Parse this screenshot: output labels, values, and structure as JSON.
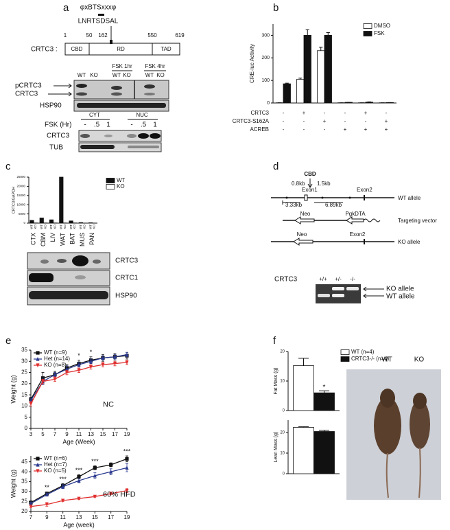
{
  "panel_labels": [
    "a",
    "b",
    "c",
    "d",
    "e",
    "f"
  ],
  "panel_a": {
    "motif": "φxBTSxxxφ",
    "sequence": "LNRTSDSAL",
    "gene": "CRTC3 :",
    "positions": [
      1,
      50,
      162,
      550,
      619
    ],
    "domains": [
      "CBD",
      "RD",
      "TAD"
    ],
    "blot1": {
      "groups": [
        "FSK 1hr",
        "FSK 4hr"
      ],
      "lanes": [
        "WT",
        "KO",
        "WT",
        "KO",
        "WT",
        "KO"
      ],
      "rows": [
        "pCRTC3",
        "CRTC3",
        "HSP90"
      ]
    },
    "blot2": {
      "groups": [
        "CYT",
        "NUC"
      ],
      "condition": "FSK (Hr)",
      "lanes": [
        "-",
        ".5",
        "1",
        "-",
        ".5",
        "1"
      ],
      "rows": [
        "CRTC3",
        "TUB"
      ]
    }
  },
  "panel_d": {
    "cbd": "CBD",
    "kb_left": "0.8kb",
    "exon1": "Exon1",
    "kb_right": "1.5kb",
    "exon2": "Exon2",
    "kb_a": "3.33kb",
    "kb_b": "6.89kb",
    "wt_allele": "WT allele",
    "neo": "Neo",
    "pgkdta": "PgkDTA",
    "targeting_vector": "Targeting vector",
    "ko_neo": "Neo",
    "ko_exon2": "Exon2",
    "ko_allele": "KO allele",
    "gel": {
      "gene": "CRTC3",
      "lanes": [
        "+/+",
        "+/-",
        "-/-"
      ],
      "bands": [
        "KO allele",
        "WT allele"
      ]
    }
  },
  "panel_c_blot": {
    "rows": [
      "CRTC3",
      "CRTC1",
      "HSP90"
    ]
  },
  "panel_f_photo": {
    "labels": [
      "WT",
      "KO"
    ]
  },
  "chart_data": [
    {
      "type": "bar",
      "y_label": "CRE-luc Activity",
      "ylim": [
        0,
        350
      ],
      "yticks": [
        0,
        100,
        200,
        300
      ],
      "series": [
        {
          "name": "DMSO",
          "color": "#ffffff",
          "values": [
            1,
            105,
            232,
            1,
            1,
            1
          ],
          "errors": [
            0,
            5,
            15,
            0,
            0,
            0
          ]
        },
        {
          "name": "FSK",
          "color": "#111111",
          "values": [
            85,
            300,
            300,
            3,
            4,
            2
          ],
          "errors": [
            3,
            25,
            12,
            0,
            1,
            0
          ]
        }
      ],
      "conditions": [
        {
          "name": "CRTC3",
          "signs": [
            "-",
            "+",
            "-",
            "-",
            "+",
            "-"
          ]
        },
        {
          "name": "CRTC3-S162A",
          "signs": [
            "-",
            "-",
            "+",
            "-",
            "-",
            "+"
          ]
        },
        {
          "name": "ACREB",
          "signs": [
            "-",
            "-",
            "-",
            "+",
            "+",
            "+"
          ]
        }
      ]
    },
    {
      "type": "bar",
      "y_label": "CRTC3/GAPDH",
      "ylim": [
        0,
        25000
      ],
      "yticks": [
        0,
        5000,
        10000,
        15000,
        20000,
        25000
      ],
      "categories": [
        "CTX",
        "CBM",
        "LIV",
        "WAT",
        "BAT",
        "MUS",
        "PAN"
      ],
      "series": [
        {
          "name": "WT",
          "color": "#111111",
          "values": [
            1500,
            2800,
            1800,
            25000,
            1200,
            300,
            200
          ]
        },
        {
          "name": "KO",
          "color": "#ffffff",
          "values": [
            100,
            100,
            100,
            100,
            100,
            50,
            50
          ]
        }
      ]
    },
    {
      "type": "line",
      "x_label": "Age (Week)",
      "y_label": "Weight (g)",
      "condition": "NC",
      "x": [
        3,
        5,
        7,
        9,
        11,
        13,
        15,
        17,
        19
      ],
      "xlim": [
        3,
        19
      ],
      "xticks": [
        3,
        5,
        7,
        9,
        11,
        13,
        15,
        17,
        19
      ],
      "ylim": [
        0,
        35
      ],
      "yticks": [
        0,
        5,
        10,
        15,
        20,
        25,
        30,
        35
      ],
      "series": [
        {
          "name": "WT (n=9)",
          "color": "#111111",
          "marker": "square",
          "values": [
            13,
            22.5,
            24,
            27,
            29,
            30.5,
            31.5,
            32,
            32.5
          ],
          "errors": [
            1,
            2.5,
            1.5,
            1.5,
            1.5,
            1.5,
            1.5,
            1.5,
            1.5
          ]
        },
        {
          "name": "Het (n=14)",
          "color": "#2b3a8f",
          "marker": "tri-up",
          "values": [
            12.5,
            21,
            24,
            26.5,
            28.5,
            30,
            31.5,
            32,
            33
          ],
          "errors": [
            1,
            1.5,
            1,
            1.5,
            1,
            1,
            1,
            1,
            1
          ]
        },
        {
          "name": "KO (n=8)",
          "color": "#e0302f",
          "marker": "tri-down",
          "values": [
            11,
            21,
            22,
            25,
            26,
            27.5,
            28.5,
            29,
            29.5
          ],
          "errors": [
            1,
            1,
            1,
            1,
            1,
            1,
            1,
            1,
            1
          ]
        }
      ],
      "annotations": [
        {
          "x": 11,
          "text": "*"
        },
        {
          "x": 13,
          "text": "*"
        }
      ]
    },
    {
      "type": "line",
      "x_label": "Age (week)",
      "y_label": "Weight (g)",
      "condition": "60% HFD",
      "x": [
        7,
        9,
        11,
        13,
        15,
        17,
        19
      ],
      "xlim": [
        7,
        19
      ],
      "xticks": [
        7,
        9,
        11,
        13,
        15,
        17,
        19
      ],
      "ylim": [
        20,
        48
      ],
      "yticks": [
        20,
        25,
        30,
        35,
        40,
        45
      ],
      "series": [
        {
          "name": "WT (n=6)",
          "color": "#111111",
          "marker": "square",
          "values": [
            24.5,
            29,
            33,
            37.5,
            42,
            43.5,
            46.5
          ],
          "errors": [
            0.8,
            0.8,
            1,
            1,
            1,
            1,
            1.5
          ]
        },
        {
          "name": "Het (n=7)",
          "color": "#2b3a8f",
          "marker": "tri-up",
          "values": [
            24,
            28.5,
            32.5,
            35.5,
            38,
            40,
            42
          ],
          "errors": [
            0.8,
            0.8,
            1,
            1,
            1.5,
            1.5,
            2
          ]
        },
        {
          "name": "KO (n=5)",
          "color": "#e0302f",
          "marker": "tri-down",
          "values": [
            22.5,
            23.5,
            25.5,
            26.5,
            27.5,
            29,
            30.5
          ],
          "errors": [
            0.5,
            1,
            0.5,
            0.5,
            0.5,
            0.5,
            1
          ]
        }
      ],
      "annotations": [
        {
          "x": 9,
          "text": "**"
        },
        {
          "x": 11,
          "text": "***"
        },
        {
          "x": 13,
          "text": "***"
        },
        {
          "x": 15,
          "text": "***"
        },
        {
          "x": 19,
          "text": "***"
        }
      ]
    },
    {
      "type": "bar",
      "y_label": "Fat Mass (g)",
      "ylim": [
        0,
        20
      ],
      "yticks": [
        0,
        10,
        20
      ],
      "series": [
        {
          "name": "WT (n=4)",
          "color": "#ffffff",
          "values": [
            15.2
          ],
          "errors": [
            2.5
          ]
        },
        {
          "name": "CRTC3-/- (n=4)",
          "color": "#111111",
          "values": [
            6
          ],
          "errors": [
            0.7
          ],
          "annotation": "*"
        }
      ]
    },
    {
      "type": "bar",
      "y_label": "Lean Mass (g)",
      "ylim": [
        0,
        26
      ],
      "yticks": [
        0,
        10,
        20
      ],
      "series": [
        {
          "color": "#ffffff",
          "values": [
            22.5
          ],
          "errors": [
            0.3
          ]
        },
        {
          "color": "#111111",
          "values": [
            20.5
          ],
          "errors": [
            0.6
          ]
        }
      ]
    }
  ]
}
